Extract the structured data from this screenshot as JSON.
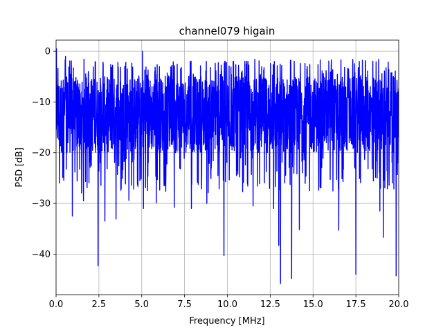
{
  "chart_data": {
    "type": "line",
    "title": "channel079 higain",
    "xlabel": "Frequency [MHz]",
    "ylabel": "PSD [dB]",
    "xlim": [
      0,
      20
    ],
    "ylim": [
      -48,
      2.2
    ],
    "grid": true,
    "x_ticks": [
      0.0,
      2.5,
      5.0,
      7.5,
      10.0,
      12.5,
      15.0,
      17.5,
      20.0
    ],
    "x_tick_labels": [
      "0.0",
      "2.5",
      "5.0",
      "7.5",
      "10.0",
      "12.5",
      "15.0",
      "17.5",
      "20.0"
    ],
    "y_ticks": [
      0,
      -10,
      -20,
      -30,
      -40
    ],
    "y_tick_labels": [
      "0",
      "−10",
      "−20",
      "−30",
      "−40"
    ],
    "series": [
      {
        "color": "#0000ff",
        "x_start": 0,
        "x_step": 0.01,
        "y_band": [
          -20,
          -5
        ],
        "peaks": [
          {
            "x": 0.02,
            "y": 0.5
          },
          {
            "x": 0.55,
            "y": -1
          },
          {
            "x": 5.05,
            "y": 0.0
          },
          {
            "x": 11.2,
            "y": -2
          },
          {
            "x": 17.7,
            "y": -2
          }
        ],
        "dips": [
          {
            "x": 0.2,
            "y": -26
          },
          {
            "x": 0.95,
            "y": -32.5
          },
          {
            "x": 1.6,
            "y": -29.5
          },
          {
            "x": 2.45,
            "y": -42.3
          },
          {
            "x": 2.85,
            "y": -33.5
          },
          {
            "x": 3.5,
            "y": -33.1
          },
          {
            "x": 4.25,
            "y": -29.4
          },
          {
            "x": 5.1,
            "y": -31
          },
          {
            "x": 5.85,
            "y": -29.9
          },
          {
            "x": 6.9,
            "y": -30.8
          },
          {
            "x": 7.9,
            "y": -31
          },
          {
            "x": 8.8,
            "y": -30
          },
          {
            "x": 9.8,
            "y": -40.3
          },
          {
            "x": 11.5,
            "y": -30.5
          },
          {
            "x": 12.7,
            "y": -31
          },
          {
            "x": 13.0,
            "y": -38.3
          },
          {
            "x": 13.1,
            "y": -45.8
          },
          {
            "x": 13.75,
            "y": -44.8
          },
          {
            "x": 14.2,
            "y": -35.2
          },
          {
            "x": 14.8,
            "y": -27.5
          },
          {
            "x": 16.5,
            "y": -35.3
          },
          {
            "x": 17.5,
            "y": -44.0
          },
          {
            "x": 18.9,
            "y": -31.5
          },
          {
            "x": 19.1,
            "y": -36.7
          },
          {
            "x": 19.85,
            "y": -44.3
          }
        ]
      }
    ]
  }
}
